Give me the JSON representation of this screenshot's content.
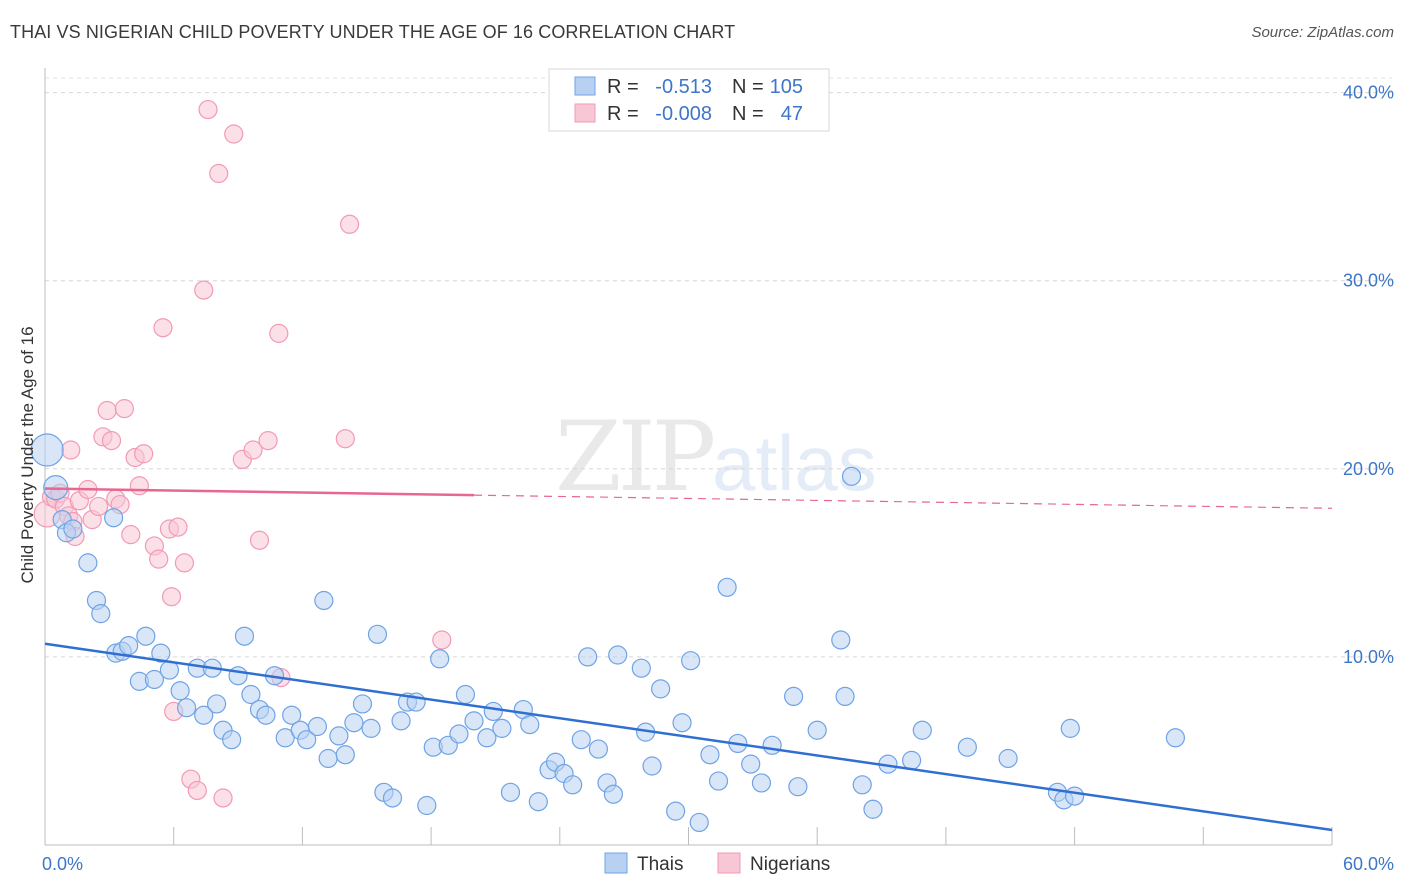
{
  "title": "THAI VS NIGERIAN CHILD POVERTY UNDER THE AGE OF 16 CORRELATION CHART",
  "source": "Source: ZipAtlas.com",
  "chart_data": {
    "type": "scatter",
    "title": "THAI VS NIGERIAN CHILD POVERTY UNDER THE AGE OF 16 CORRELATION CHART",
    "xlabel": "",
    "ylabel": "Child Poverty Under the Age of 16",
    "xlim": [
      0,
      60
    ],
    "ylim": [
      0,
      42
    ],
    "x_tick_labels": [
      "0.0%",
      "60.0%"
    ],
    "y_ticks": [
      10,
      20,
      30,
      40
    ],
    "y_tick_labels": [
      "10.0%",
      "20.0%",
      "30.0%",
      "40.0%"
    ],
    "grid": "horizontal dashed",
    "legend_position": "bottom-center",
    "watermark": "ZIPatlas",
    "stats": [
      {
        "r_label": "R =",
        "r": "-0.513",
        "n_label": "N =",
        "n": "105"
      },
      {
        "r_label": "R =",
        "r": "-0.008",
        "n_label": "N =",
        "n": "47"
      }
    ],
    "series": [
      {
        "name": "Thais",
        "color": "#6fa3e6",
        "fill": "#b8d1f3",
        "line_color": "#2f6fd1",
        "trend": {
          "x0": 0,
          "y0": 10.7,
          "x1": 60,
          "y1": 0.8
        },
        "points": [
          [
            0.1,
            21.0
          ],
          [
            0.5,
            19.0
          ],
          [
            0.8,
            17.3
          ],
          [
            1.0,
            16.6
          ],
          [
            1.3,
            16.8
          ],
          [
            2.0,
            15.0
          ],
          [
            2.4,
            13.0
          ],
          [
            2.6,
            12.3
          ],
          [
            3.2,
            17.4
          ],
          [
            3.3,
            10.2
          ],
          [
            3.6,
            10.3
          ],
          [
            3.9,
            10.6
          ],
          [
            4.4,
            8.7
          ],
          [
            4.7,
            11.1
          ],
          [
            5.1,
            8.8
          ],
          [
            5.4,
            10.2
          ],
          [
            5.8,
            9.3
          ],
          [
            6.3,
            8.2
          ],
          [
            6.6,
            7.3
          ],
          [
            7.1,
            9.4
          ],
          [
            7.4,
            6.9
          ],
          [
            7.8,
            9.4
          ],
          [
            8.0,
            7.5
          ],
          [
            8.3,
            6.1
          ],
          [
            8.7,
            5.6
          ],
          [
            9.0,
            9.0
          ],
          [
            9.3,
            11.1
          ],
          [
            9.6,
            8.0
          ],
          [
            10.0,
            7.2
          ],
          [
            10.3,
            6.9
          ],
          [
            10.7,
            9.0
          ],
          [
            11.2,
            5.7
          ],
          [
            11.5,
            6.9
          ],
          [
            11.9,
            6.1
          ],
          [
            12.2,
            5.6
          ],
          [
            12.7,
            6.3
          ],
          [
            13.0,
            13.0
          ],
          [
            13.2,
            4.6
          ],
          [
            13.7,
            5.8
          ],
          [
            14.0,
            4.8
          ],
          [
            14.4,
            6.5
          ],
          [
            14.8,
            7.5
          ],
          [
            15.2,
            6.2
          ],
          [
            15.5,
            11.2
          ],
          [
            15.8,
            2.8
          ],
          [
            16.2,
            2.5
          ],
          [
            16.6,
            6.6
          ],
          [
            16.9,
            7.6
          ],
          [
            17.3,
            7.6
          ],
          [
            17.8,
            2.1
          ],
          [
            18.1,
            5.2
          ],
          [
            18.4,
            9.9
          ],
          [
            18.8,
            5.3
          ],
          [
            19.3,
            5.9
          ],
          [
            19.6,
            8.0
          ],
          [
            20.0,
            6.6
          ],
          [
            20.6,
            5.7
          ],
          [
            20.9,
            7.1
          ],
          [
            21.3,
            6.2
          ],
          [
            21.7,
            2.8
          ],
          [
            22.3,
            7.2
          ],
          [
            22.6,
            6.4
          ],
          [
            23.0,
            2.3
          ],
          [
            23.5,
            4.0
          ],
          [
            23.8,
            4.4
          ],
          [
            24.2,
            3.8
          ],
          [
            24.6,
            3.2
          ],
          [
            25.0,
            5.6
          ],
          [
            25.3,
            10.0
          ],
          [
            25.8,
            5.1
          ],
          [
            26.2,
            3.3
          ],
          [
            26.5,
            2.7
          ],
          [
            26.7,
            10.1
          ],
          [
            27.8,
            9.4
          ],
          [
            28.0,
            6.0
          ],
          [
            28.3,
            4.2
          ],
          [
            28.7,
            8.3
          ],
          [
            29.4,
            1.8
          ],
          [
            29.7,
            6.5
          ],
          [
            30.1,
            9.8
          ],
          [
            30.5,
            1.2
          ],
          [
            31.0,
            4.8
          ],
          [
            31.4,
            3.4
          ],
          [
            31.8,
            13.7
          ],
          [
            32.3,
            5.4
          ],
          [
            32.9,
            4.3
          ],
          [
            33.4,
            3.3
          ],
          [
            33.9,
            5.3
          ],
          [
            34.9,
            7.9
          ],
          [
            35.1,
            3.1
          ],
          [
            36.0,
            6.1
          ],
          [
            37.1,
            10.9
          ],
          [
            37.3,
            7.9
          ],
          [
            37.6,
            19.6
          ],
          [
            38.1,
            3.2
          ],
          [
            38.6,
            1.9
          ],
          [
            39.3,
            4.3
          ],
          [
            40.4,
            4.5
          ],
          [
            40.9,
            6.1
          ],
          [
            43.0,
            5.2
          ],
          [
            44.9,
            4.6
          ],
          [
            47.2,
            2.8
          ],
          [
            47.5,
            2.4
          ],
          [
            47.8,
            6.2
          ],
          [
            48.0,
            2.6
          ],
          [
            52.7,
            5.7
          ]
        ]
      },
      {
        "name": "Nigerians",
        "color": "#f29ab5",
        "fill": "#f8c7d6",
        "line_color": "#e8678f",
        "trend": {
          "x0": 0,
          "y0": 18.95,
          "x1": 20,
          "y1": 18.6,
          "x2": 60,
          "y2": 17.9
        },
        "points": [
          [
            0.1,
            17.6
          ],
          [
            0.3,
            18.5
          ],
          [
            0.5,
            18.4
          ],
          [
            0.7,
            18.7
          ],
          [
            0.9,
            18.0
          ],
          [
            1.1,
            17.5
          ],
          [
            1.2,
            21.0
          ],
          [
            1.3,
            17.2
          ],
          [
            1.4,
            16.4
          ],
          [
            1.6,
            18.3
          ],
          [
            2.0,
            18.9
          ],
          [
            2.2,
            17.3
          ],
          [
            2.5,
            18.0
          ],
          [
            2.7,
            21.7
          ],
          [
            2.9,
            23.1
          ],
          [
            3.1,
            21.5
          ],
          [
            3.3,
            18.4
          ],
          [
            3.5,
            18.1
          ],
          [
            3.7,
            23.2
          ],
          [
            4.0,
            16.5
          ],
          [
            4.2,
            20.6
          ],
          [
            4.4,
            19.1
          ],
          [
            4.6,
            20.8
          ],
          [
            5.1,
            15.9
          ],
          [
            5.3,
            15.2
          ],
          [
            5.5,
            27.5
          ],
          [
            5.8,
            16.8
          ],
          [
            5.9,
            13.2
          ],
          [
            6.0,
            7.1
          ],
          [
            6.2,
            16.9
          ],
          [
            6.5,
            15.0
          ],
          [
            6.8,
            3.5
          ],
          [
            7.1,
            2.9
          ],
          [
            7.4,
            29.5
          ],
          [
            7.6,
            39.1
          ],
          [
            8.1,
            35.7
          ],
          [
            8.3,
            2.5
          ],
          [
            8.8,
            37.8
          ],
          [
            9.2,
            20.5
          ],
          [
            9.7,
            21.0
          ],
          [
            10.0,
            16.2
          ],
          [
            10.4,
            21.5
          ],
          [
            10.9,
            27.2
          ],
          [
            11.0,
            8.9
          ],
          [
            14.0,
            21.6
          ],
          [
            14.2,
            33.0
          ],
          [
            18.5,
            10.9
          ]
        ]
      }
    ]
  },
  "legend": {
    "items": [
      {
        "label": "Thais"
      },
      {
        "label": "Nigerians"
      }
    ]
  }
}
